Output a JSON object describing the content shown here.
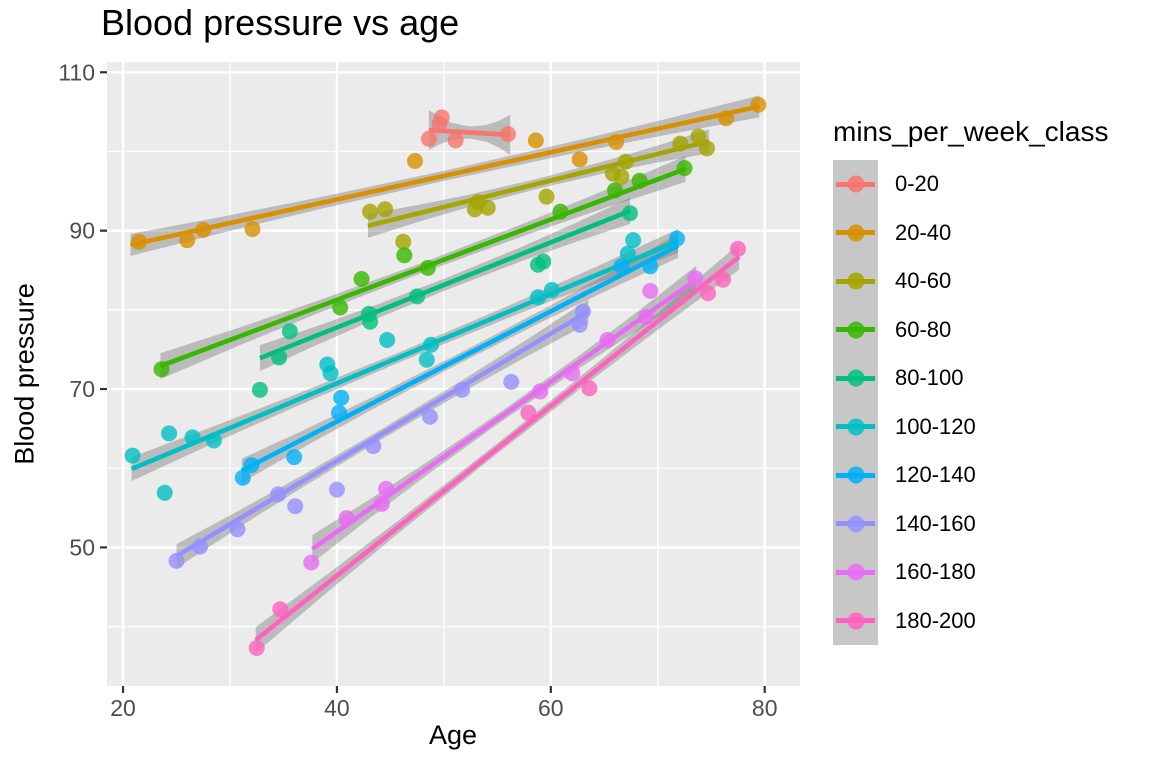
{
  "title": "Blood pressure vs age",
  "x_axis": {
    "label": "Age",
    "tick_labels": [
      "20",
      "40",
      "60",
      "80"
    ],
    "tick_values": [
      20,
      40,
      60,
      80
    ],
    "minor_values": [
      30,
      50,
      70
    ],
    "domain": [
      18.5,
      83.3
    ]
  },
  "y_axis": {
    "label": "Blood pressure",
    "tick_labels": [
      "110",
      "90",
      "70",
      "50"
    ],
    "tick_values": [
      110,
      90,
      70,
      50
    ],
    "minor_values": [
      100,
      80,
      60,
      40
    ],
    "domain": [
      32.5,
      111.3
    ]
  },
  "legend": {
    "title": "mins_per_week_class",
    "items": [
      {
        "label": "0-20",
        "color": "#F8766D"
      },
      {
        "label": "20-40",
        "color": "#D89000"
      },
      {
        "label": "40-60",
        "color": "#A3A500"
      },
      {
        "label": "60-80",
        "color": "#39B600"
      },
      {
        "label": "80-100",
        "color": "#00BF7D"
      },
      {
        "label": "100-120",
        "color": "#00BFC4"
      },
      {
        "label": "120-140",
        "color": "#00B0F6"
      },
      {
        "label": "140-160",
        "color": "#9590FF"
      },
      {
        "label": "160-180",
        "color": "#E76BF3"
      },
      {
        "label": "180-200",
        "color": "#FF62BC"
      }
    ]
  },
  "colors": {
    "panel_bg": "#EBEBEB",
    "gridline": "#FFFFFF",
    "tick_mark": "#333333",
    "tick_label": "#4D4D4D",
    "ci_band": "rgba(110,110,110,0.38)",
    "legend_key_bg": "#C7C7C7"
  },
  "chart_data": {
    "type": "scatter",
    "smoother": "linear-with-ci",
    "title": "Blood pressure vs age",
    "xlabel": "Age",
    "ylabel": "Blood pressure",
    "xlim": [
      18.5,
      83.3
    ],
    "ylim": [
      32.5,
      111.3
    ],
    "grid": true,
    "legend_position": "right",
    "series": [
      {
        "name": "0-20",
        "color": "#F8766D",
        "points": [
          [
            48.6,
            101.6
          ],
          [
            49.6,
            103.5
          ],
          [
            49.8,
            104.3
          ],
          [
            51.1,
            101.4
          ],
          [
            56.0,
            102.2
          ]
        ],
        "trend": [
          [
            48.6,
            102.7
          ],
          [
            56.2,
            102.1
          ]
        ],
        "band_end": 20,
        "band_mid": 6
      },
      {
        "name": "20-40",
        "color": "#D89000",
        "points": [
          [
            21.5,
            88.6
          ],
          [
            26.0,
            88.8
          ],
          [
            27.5,
            90.1
          ],
          [
            32.1,
            90.2
          ],
          [
            47.3,
            98.8
          ],
          [
            58.6,
            101.4
          ],
          [
            62.7,
            99.0
          ],
          [
            66.1,
            101.2
          ],
          [
            76.4,
            104.2
          ],
          [
            79.4,
            105.9
          ]
        ],
        "trend": [
          [
            20.7,
            88.2
          ],
          [
            79.5,
            105.7
          ]
        ],
        "band_end": 11,
        "band_mid": 5
      },
      {
        "name": "40-60",
        "color": "#A3A500",
        "points": [
          [
            43.1,
            92.4
          ],
          [
            44.5,
            92.7
          ],
          [
            46.2,
            88.6
          ],
          [
            52.9,
            92.7
          ],
          [
            53.2,
            93.6
          ],
          [
            54.1,
            92.9
          ],
          [
            59.6,
            94.3
          ],
          [
            65.8,
            97.2
          ],
          [
            66.6,
            96.8
          ],
          [
            67.0,
            98.7
          ],
          [
            72.1,
            101.0
          ],
          [
            73.8,
            101.9
          ],
          [
            74.6,
            100.4
          ]
        ],
        "trend": [
          [
            42.9,
            90.6
          ],
          [
            74.8,
            101.3
          ]
        ],
        "band_end": 12,
        "band_mid": 5
      },
      {
        "name": "60-80",
        "color": "#39B600",
        "points": [
          [
            23.6,
            72.5
          ],
          [
            40.3,
            80.3
          ],
          [
            42.3,
            83.9
          ],
          [
            46.3,
            86.9
          ],
          [
            48.5,
            85.3
          ],
          [
            60.9,
            92.4
          ],
          [
            66.0,
            95.1
          ],
          [
            68.3,
            96.3
          ],
          [
            72.5,
            97.9
          ]
        ],
        "trend": [
          [
            23.5,
            72.9
          ],
          [
            72.6,
            97.8
          ]
        ],
        "band_end": 13,
        "band_mid": 5
      },
      {
        "name": "80-100",
        "color": "#00BF7D",
        "points": [
          [
            32.8,
            69.9
          ],
          [
            34.6,
            74.0
          ],
          [
            35.6,
            77.3
          ],
          [
            43.0,
            79.5
          ],
          [
            43.1,
            78.5
          ],
          [
            47.5,
            81.7
          ],
          [
            58.8,
            85.7
          ],
          [
            59.3,
            86.1
          ],
          [
            67.4,
            92.2
          ]
        ],
        "trend": [
          [
            32.8,
            73.9
          ],
          [
            67.4,
            92.5
          ]
        ],
        "band_end": 13,
        "band_mid": 6
      },
      {
        "name": "100-120",
        "color": "#00BFC4",
        "points": [
          [
            20.9,
            61.6
          ],
          [
            23.9,
            56.9
          ],
          [
            24.3,
            64.4
          ],
          [
            26.5,
            63.9
          ],
          [
            28.5,
            63.5
          ],
          [
            39.1,
            73.1
          ],
          [
            39.4,
            72.0
          ],
          [
            44.7,
            76.2
          ],
          [
            48.4,
            73.7
          ],
          [
            48.8,
            75.6
          ],
          [
            58.8,
            81.6
          ],
          [
            60.1,
            82.5
          ],
          [
            67.2,
            87.1
          ],
          [
            67.7,
            88.8
          ]
        ],
        "trend": [
          [
            20.8,
            59.9
          ],
          [
            71.9,
            88.7
          ]
        ],
        "band_end": 12,
        "band_mid": 5
      },
      {
        "name": "120-140",
        "color": "#00B0F6",
        "points": [
          [
            31.2,
            58.8
          ],
          [
            32.0,
            60.4
          ],
          [
            36.0,
            61.4
          ],
          [
            40.2,
            67.0
          ],
          [
            40.4,
            68.9
          ],
          [
            66.6,
            85.5
          ],
          [
            69.3,
            85.5
          ],
          [
            71.8,
            89.0
          ]
        ],
        "trend": [
          [
            31.1,
            59.7
          ],
          [
            71.9,
            88.1
          ]
        ],
        "band_end": 12,
        "band_mid": 5
      },
      {
        "name": "140-160",
        "color": "#9590FF",
        "points": [
          [
            25.0,
            48.3
          ],
          [
            27.2,
            50.1
          ],
          [
            30.7,
            52.3
          ],
          [
            34.5,
            56.7
          ],
          [
            36.1,
            55.2
          ],
          [
            40.0,
            57.3
          ],
          [
            43.4,
            62.8
          ],
          [
            48.7,
            66.5
          ],
          [
            51.7,
            69.9
          ],
          [
            56.3,
            70.9
          ],
          [
            62.7,
            78.1
          ],
          [
            63.0,
            79.8
          ]
        ],
        "trend": [
          [
            25.0,
            48.9
          ],
          [
            63.5,
            79.8
          ]
        ],
        "band_end": 12,
        "band_mid": 5
      },
      {
        "name": "160-180",
        "color": "#E76BF3",
        "points": [
          [
            37.6,
            48.1
          ],
          [
            40.9,
            53.7
          ],
          [
            44.2,
            55.5
          ],
          [
            44.6,
            57.4
          ],
          [
            59.0,
            69.7
          ],
          [
            62.0,
            72.0
          ],
          [
            65.3,
            76.2
          ],
          [
            68.9,
            79.1
          ],
          [
            69.3,
            82.4
          ],
          [
            73.5,
            84.0
          ]
        ],
        "trend": [
          [
            37.7,
            49.8
          ],
          [
            73.6,
            83.8
          ]
        ],
        "band_end": 14,
        "band_mid": 5
      },
      {
        "name": "180-200",
        "color": "#FF62BC",
        "points": [
          [
            32.5,
            37.3
          ],
          [
            34.7,
            42.2
          ],
          [
            57.9,
            67.0
          ],
          [
            63.6,
            70.1
          ],
          [
            74.7,
            82.1
          ],
          [
            76.1,
            83.8
          ],
          [
            77.5,
            87.7
          ]
        ],
        "trend": [
          [
            32.4,
            38.3
          ],
          [
            77.6,
            86.7
          ]
        ],
        "band_end": 13,
        "band_mid": 5
      }
    ]
  }
}
